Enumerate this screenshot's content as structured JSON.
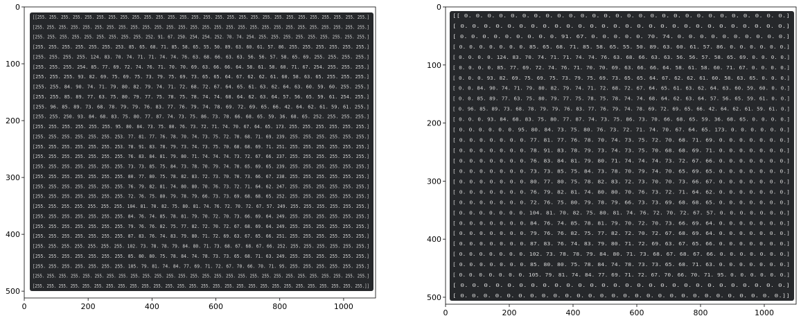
{
  "chart_data": [
    {
      "type": "image",
      "xlim": [
        0,
        1100
      ],
      "ylim": [
        512,
        0
      ],
      "xticks": [
        0,
        200,
        400,
        600,
        800,
        1000
      ],
      "yticks": [
        0,
        100,
        200,
        300,
        400,
        500
      ],
      "grid": false,
      "colors": {
        "panel_bg": "#26282b",
        "text": "#d6d6d6"
      },
      "lines": [
        "[[255. 255. 255. 255. 255. 255. 255. 255. 255. 255. 255. 255. 255. 255. 255. 255. 255. 255. 255. 255. 255. 255. 255. 255. 255. 255. 255. 255.]",
        " [255. 255. 255. 255. 255. 255. 255. 255. 255. 255. 255. 255. 255. 255. 255. 255. 255. 255. 255. 255. 255. 255. 255. 255. 255. 255. 255. 255.]",
        " [255. 255. 255. 255. 255. 255. 255. 255. 255. 252.  91.  67. 250. 254. 254. 252.  70.  74. 254. 255. 255. 255. 255. 255. 255. 255. 255. 255.]",
        " [255. 255. 255. 255. 255. 255. 253.  85.  65.  68.  71.  85.  58.  65.  55.  50.  89.  63.  60.  61.  57.  86. 255. 255. 255. 255. 255. 255.]",
        " [255. 255. 255. 255. 124.  83.  70.  74.  71.  71.  74.  74.  76.  63.  68.  66.  63.  63.  56.  56.  57.  58.  65.  69. 255. 255. 255. 255.]",
        " [255. 255. 255. 254.  85.  77.  69.  72.  74.  76.  71.  70.  70.  69.  63.  66.  66.  64.  58.  61.  58.  60.  71.  67. 254. 255. 255. 255.]",
        " [255. 255. 255.  93.  82.  69.  75.  69.  75.  73.  79.  75.  69.  73.  65.  65.  64.  67.  62.  62.  61.  60.  58.  63.  65. 255. 255. 255.]",
        " [255. 255.  84.  90.  74.  71.  79.  80.  82.  79.  74.  71.  72.  68.  72.  67.  64.  65.  61.  63.  62.  64.  63.  60.  59.  60. 255. 255.]",
        " [255. 255.  85.  89.  77.  63.  75.  80.  79.  77.  75.  78.  75.  78.  74.  74.  68.  64.  62.  63.  64.  57.  56.  65.  59.  61. 254. 255.]",
        " [255.  96.  85.  89.  73.  68.  78.  79.  79.  76.  83.  77.  76.  79.  74.  78.  69.  72.  69.  65.  66.  42.  64.  62.  61.  59.  61. 255.]",
        " [255. 255. 250.  93.  84.  68.  83.  75.  80.  77.  87.  74.  73.  75.  86.  73.  70.  66.  68.  65.  59.  36.  68.  65. 252. 255. 255. 255.]",
        " [255. 255. 255. 255. 255. 255.  95.  80.  84.  73.  75.  80.  76.  73.  72.  71.  74.  70.  67.  64.  65. 173. 255. 255. 255. 255. 255. 255.]",
        " [255. 255. 255. 255. 255. 255. 253.  77.  81.  77.  76.  78.  70.  74.  73.  75.  72.  70.  68.  71.  69. 239. 255. 255. 255. 255. 255. 255.]",
        " [255. 255. 255. 255. 255. 255. 253.  78.  91.  83.  78.  79.  73.  74.  73.  75.  70.  68.  68.  69.  71. 251. 255. 255. 255. 255. 255. 255.]",
        " [255. 255. 255. 255. 255. 255. 255.  76.  83.  84.  81.  79.  80.  71.  74.  74.  74.  73.  72.  67.  66. 237. 255. 255. 255. 255. 255. 255.]",
        " [255. 255. 255. 255. 255. 255. 255.  73.  73.  85.  75.  84.  73.  78.  70.  79.  74.  70.  65.  69.  65. 239. 255. 255. 255. 255. 255. 255.]",
        " [255. 255. 255. 255. 255. 255. 255.  80.  77.  80.  75.  78.  82.  83.  72.  73.  70.  70.  73.  66.  67. 238. 255. 255. 255. 255. 255. 255.]",
        " [255. 255. 255. 255. 255. 255. 255.  76.  79.  82.  81.  74.  80.  80.  70.  76.  73.  72.  71.  64.  62. 247. 255. 255. 255. 255. 255. 255.]",
        " [255. 255. 255. 255. 255. 255. 255.  72.  76.  75.  80.  79.  78.  79.  66.  73.  73.  69.  68.  68.  65. 252. 255. 255. 255. 255. 255. 255.]",
        " [255. 255. 255. 255. 255. 255. 255. 104.  81.  70.  82.  75.  80.  81.  74.  76.  72.  70.  72.  67.  57. 249. 255. 255. 255. 255. 255. 255.]",
        " [255. 255. 255. 255. 255. 255. 255.  84.  76.  74.  85.  78.  81.  79.  70.  72.  70.  73.  66.  69.  64. 249. 255. 255. 255. 255. 255. 255.]",
        " [255. 255. 255. 255. 255. 255. 255.  79.  76.  76.  82.  75.  77.  82.  72.  70.  72.  67.  68.  69.  64. 249. 255. 255. 255. 255. 255. 255.]",
        " [255. 255. 255. 255. 255. 255. 255.  87.  83.  76.  74.  83.  79.  80.  71.  72.  69.  63.  67.  65.  66. 251. 255. 255. 255. 255. 255. 255.]",
        " [255. 255. 255. 255. 255. 255. 255. 102.  73.  78.  78.  79.  84.  80.  71.  73.  68.  67.  68.  67.  66. 252. 255. 255. 255. 255. 255. 255.]",
        " [255. 255. 255. 255. 255. 255. 255.  85.  80.  80.  75.  78.  84.  74.  78.  73.  73.  65.  68.  71.  63. 249. 255. 255. 255. 255. 255. 255.]",
        " [255. 255. 255. 255. 255. 255. 255. 105.  79.  81.  74.  84.  77.  69.  71.  72.  67.  70.  66.  70.  71.  95. 255. 255. 255. 255. 255. 255.]",
        " [255. 255. 255. 255. 255. 255. 255. 255. 255. 255. 255. 255. 255. 255. 255. 255. 255. 255. 255. 255. 255. 255. 255. 255. 255. 255. 255. 255.]",
        " [255. 255. 255. 255. 255. 255. 255. 255. 255. 255. 255. 255. 255. 255. 255. 255. 255. 255. 255. 255. 255. 255. 255. 255. 255. 255. 255. 255.]]"
      ]
    },
    {
      "type": "image",
      "xlim": [
        0,
        1100
      ],
      "ylim": [
        512,
        0
      ],
      "xticks": [
        0,
        200,
        400,
        600,
        800,
        1000
      ],
      "yticks": [
        0,
        100,
        200,
        300,
        400,
        500
      ],
      "grid": false,
      "colors": {
        "panel_bg": "#26282b",
        "text": "#d6d6d6"
      },
      "lines": [
        "[[  0.   0.   0.   0.   0.   0.   0.   0.   0.   0.   0.   0.   0.   0.   0.   0.   0.   0.   0.   0.   0.   0.   0.   0.   0.   0.   0.   0.]",
        " [  0.   0.   0.   0.   0.   0.   0.   0.   0.   0.   0.   0.   0.   0.   0.   0.   0.   0.   0.   0.   0.   0.   0.   0.   0.   0.   0.   0.]",
        " [  0.   0.   0.   0.   0.   0.   0.   0.   0.  91.  67.   0.   0.   0.   0.   0.  70.  74.   0.   0.   0.   0.   0.   0.   0.   0.   0.   0.]",
        " [  0.   0.   0.   0.   0.   0.   0.  85.  65.  68.  71.  85.  58.  65.  55.  50.  89.  63.  60.  61.  57.  86.   0.   0.   0.   0.   0.   0.]",
        " [  0.   0.   0.   0. 124.  83.  70.  74.  71.  71.  74.  74.  76.  63.  68.  66.  63.  63.  56.  56.  57.  58.  65.  69.   0.   0.   0.   0.]",
        " [  0.   0.   0.   0.  85.  77.  69.  72.  74.  76.  71.  70.  70.  69.  63.  66.  66.  64.  58.  61.  58.  60.  71.  67.   0.   0.   0.   0.]",
        " [  0.   0.   0.  93.  82.  69.  75.  69.  75.  73.  79.  75.  69.  73.  65.  65.  64.  67.  62.  62.  61.  60.  58.  63.  65.   0.   0.   0.]",
        " [  0.   0.  84.  90.  74.  71.  79.  80.  82.  79.  74.  71.  72.  68.  72.  67.  64.  65.  61.  63.  62.  64.  63.  60.  59.  60.   0.   0.]",
        " [  0.   0.  85.  89.  77.  63.  75.  80.  79.  77.  75.  78.  75.  78.  74.  74.  68.  64.  62.  63.  64.  57.  56.  65.  59.  61.   0.   0.]",
        " [  0.  96.  85.  89.  73.  68.  78.  79.  79.  76.  83.  77.  76.  79.  74.  78.  69.  72.  69.  65.  66.  42.  64.  62.  61.  59.  61.   0.]",
        " [  0.   0.   0.  93.  84.  68.  83.  75.  80.  77.  87.  74.  73.  75.  86.  73.  70.  66.  68.  65.  59.  36.  68.  65.   0.   0.   0.   0.]",
        " [  0.   0.   0.   0.   0.   0.  95.  80.  84.  73.  75.  80.  76.  73.  72.  71.  74.  70.  67.  64.  65. 173.   0.   0.   0.   0.   0.   0.]",
        " [  0.   0.   0.   0.   0.   0.   0.  77.  81.  77.  76.  78.  70.  74.  73.  75.  72.  70.  68.  71.  69.   0.   0.   0.   0.   0.   0.   0.]",
        " [  0.   0.   0.   0.   0.   0.   0.  78.  91.  83.  78.  79.  73.  74.  73.  75.  70.  68.  68.  69.  71.   0.   0.   0.   0.   0.   0.   0.]",
        " [  0.   0.   0.   0.   0.   0.   0.  76.  83.  84.  81.  79.  80.  71.  74.  74.  74.  73.  72.  67.  66.   0.   0.   0.   0.   0.   0.   0.]",
        " [  0.   0.   0.   0.   0.   0.   0.  73.  73.  85.  75.  84.  73.  78.  70.  79.  74.  70.  65.  69.  65.   0.   0.   0.   0.   0.   0.   0.]",
        " [  0.   0.   0.   0.   0.   0.   0.  80.  77.  80.  75.  78.  82.  83.  72.  73.  70.  70.  73.  66.  67.   0.   0.   0.   0.   0.   0.   0.]",
        " [  0.   0.   0.   0.   0.   0.   0.  76.  79.  82.  81.  74.  80.  80.  70.  76.  73.  72.  71.  64.  62.   0.   0.   0.   0.   0.   0.   0.]",
        " [  0.   0.   0.   0.   0.   0.   0.  72.  76.  75.  80.  79.  78.  79.  66.  73.  73.  69.  68.  68.  65.   0.   0.   0.   0.   0.   0.   0.]",
        " [  0.   0.   0.   0.   0.   0.   0. 104.  81.  70.  82.  75.  80.  81.  74.  76.  72.  70.  72.  67.  57.   0.   0.   0.   0.   0.   0.   0.]",
        " [  0.   0.   0.   0.   0.   0.   0.  84.  76.  74.  85.  78.  81.  79.  70.  72.  70.  73.  66.  69.  64.   0.   0.   0.   0.   0.   0.   0.]",
        " [  0.   0.   0.   0.   0.   0.   0.  79.  76.  76.  82.  75.  77.  82.  72.  70.  72.  67.  68.  69.  64.   0.   0.   0.   0.   0.   0.   0.]",
        " [  0.   0.   0.   0.   0.   0.   0.  87.  83.  76.  74.  83.  79.  80.  71.  72.  69.  63.  67.  65.  66.   0.   0.   0.   0.   0.   0.   0.]",
        " [  0.   0.   0.   0.   0.   0.   0. 102.  73.  78.  78.  79.  84.  80.  71.  73.  68.  67.  68.  67.  66.   0.   0.   0.   0.   0.   0.   0.]",
        " [  0.   0.   0.   0.   0.   0.   0.  85.  80.  80.  75.  78.  84.  74.  78.  73.  73.  65.  68.  71.  63.   0.   0.   0.   0.   0.   0.   0.]",
        " [  0.   0.   0.   0.   0.   0.   0. 105.  79.  81.  74.  84.  77.  69.  71.  72.  67.  70.  66.  70.  71.  95.   0.   0.   0.   0.   0.   0.]",
        " [  0.   0.   0.   0.   0.   0.   0.   0.   0.   0.   0.   0.   0.   0.   0.   0.   0.   0.   0.   0.   0.   0.   0.   0.   0.   0.   0.   0.]",
        " [  0.   0.   0.   0.   0.   0.   0.   0.   0.   0.   0.   0.   0.   0.   0.   0.   0.   0.   0.   0.   0.   0.   0.   0.   0.   0.   0.   0.]]"
      ]
    }
  ]
}
